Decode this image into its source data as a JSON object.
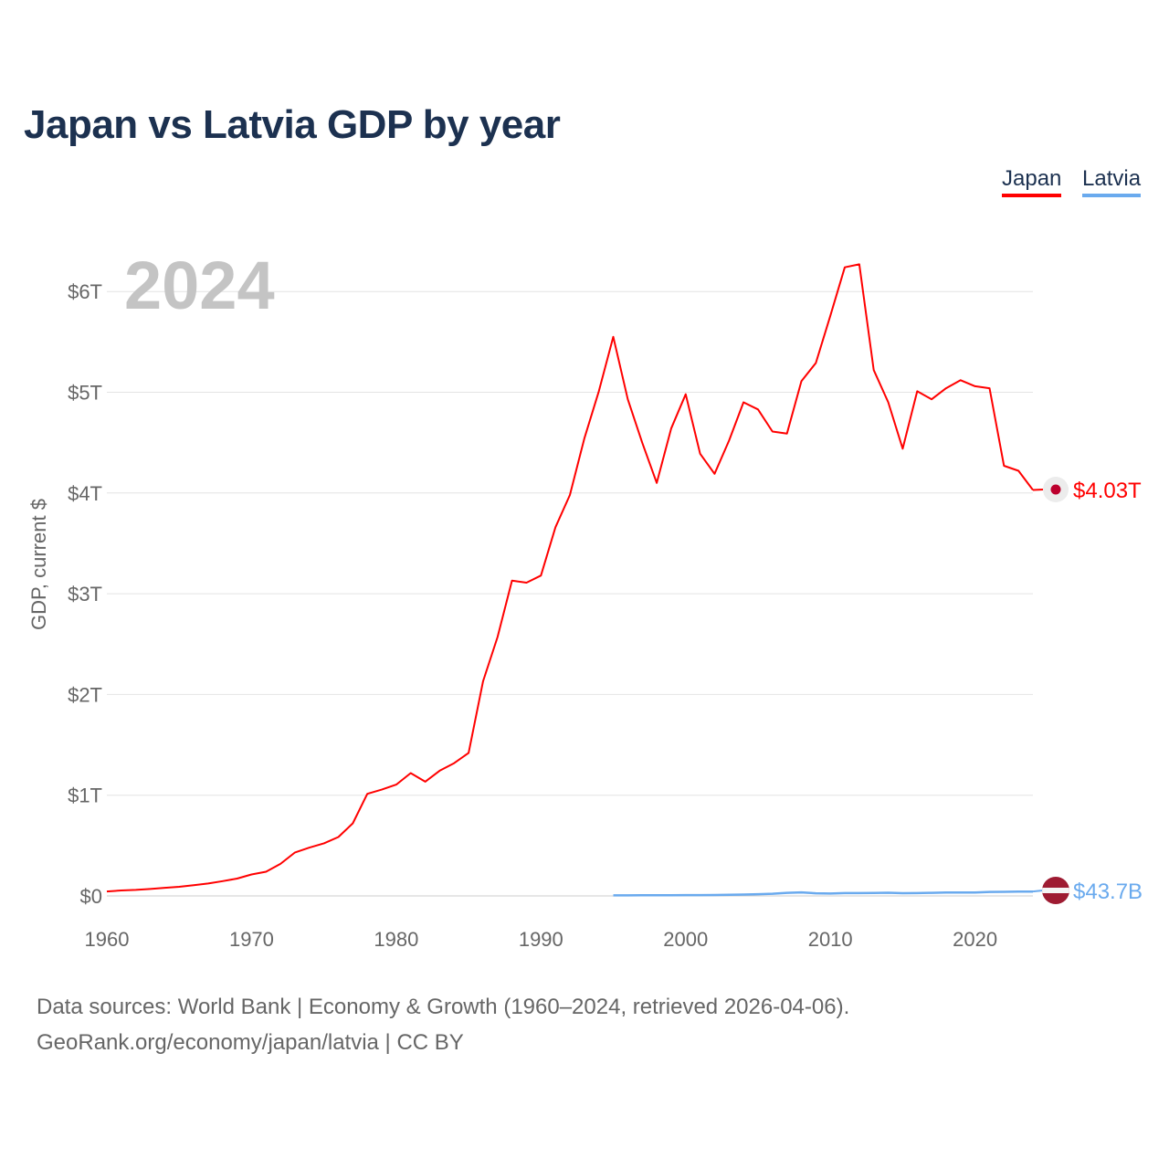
{
  "title": "Japan vs Latvia GDP by year",
  "legend": [
    {
      "label": "Japan",
      "color": "#ff0000"
    },
    {
      "label": "Latvia",
      "color": "#6aaaee"
    }
  ],
  "year_watermark": "2024",
  "footer": {
    "line1": "Data sources: World Bank | Economy & Growth (1960–2024, retrieved 2026-04-06).",
    "line2": "GeoRank.org/economy/japan/latvia | CC BY"
  },
  "chart_data": {
    "type": "line",
    "title": "Japan vs Latvia GDP by year",
    "xlabel": "",
    "ylabel": "GDP, current $",
    "xlim": [
      1960,
      2024
    ],
    "ylim": [
      0,
      6.2
    ],
    "y_unit": "trillion USD",
    "x_ticks": [
      1960,
      1970,
      1980,
      1990,
      2000,
      2010,
      2020
    ],
    "x_tick_labels": [
      "1960",
      "1970",
      "1980",
      "1990",
      "2000",
      "2010",
      "2020"
    ],
    "y_ticks": [
      0,
      1,
      2,
      3,
      4,
      5,
      6
    ],
    "y_tick_labels": [
      "$0",
      "$1T",
      "$2T",
      "$3T",
      "$4T",
      "$5T",
      "$6T"
    ],
    "grid": true,
    "legend_position": "top-right",
    "series": [
      {
        "name": "Japan",
        "color": "#ff0000",
        "end_label": "$4.03T",
        "start_year": 1960,
        "values": [
          0.044,
          0.054,
          0.06,
          0.069,
          0.081,
          0.091,
          0.106,
          0.123,
          0.147,
          0.172,
          0.213,
          0.24,
          0.318,
          0.432,
          0.48,
          0.522,
          0.585,
          0.721,
          1.014,
          1.055,
          1.105,
          1.219,
          1.134,
          1.243,
          1.318,
          1.42,
          2.13,
          2.57,
          3.13,
          3.11,
          3.18,
          3.66,
          3.98,
          4.54,
          5.01,
          5.55,
          4.93,
          4.5,
          4.1,
          4.64,
          4.98,
          4.39,
          4.19,
          4.52,
          4.9,
          4.83,
          4.61,
          4.59,
          5.11,
          5.29,
          5.76,
          6.24,
          6.27,
          5.22,
          4.9,
          4.44,
          5.01,
          4.93,
          5.04,
          5.12,
          5.06,
          5.04,
          4.27,
          4.22,
          4.03
        ]
      },
      {
        "name": "Latvia",
        "color": "#6aaaee",
        "end_label": "$43.7B",
        "start_year": 1995,
        "values": [
          0.0052,
          0.0057,
          0.0065,
          0.0071,
          0.0075,
          0.0079,
          0.0083,
          0.0093,
          0.0112,
          0.0138,
          0.0169,
          0.0215,
          0.0309,
          0.0358,
          0.0264,
          0.0238,
          0.0285,
          0.0281,
          0.0303,
          0.0314,
          0.027,
          0.0277,
          0.0305,
          0.0344,
          0.0341,
          0.0337,
          0.0399,
          0.0412,
          0.0436,
          0.0437
        ]
      }
    ]
  }
}
